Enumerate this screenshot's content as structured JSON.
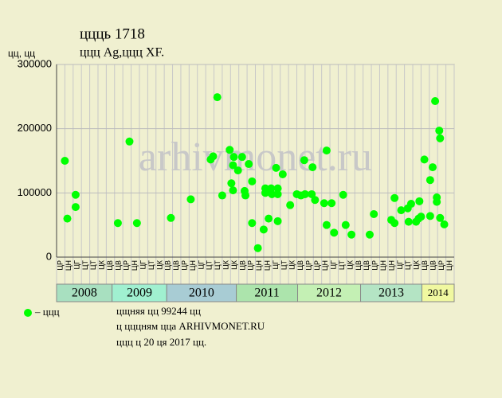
{
  "chart_data": {
    "type": "scatter",
    "title": "ццць 1718",
    "subtitle": "ццц Ag,ццц XF.",
    "y_label": "цц, цц",
    "watermark": "arhivmonet.ru",
    "color": "#00ff00",
    "legend": "– ццц",
    "notes": [
      "цщняя цц 99244 цц",
      "ц цццням цца ARHIVMONET.RU",
      "ццц ц 20 ця 2017 цц."
    ],
    "grid": true,
    "xlim": [
      0,
      48
    ],
    "ylim": [
      0,
      300000
    ],
    "yticks": [
      0,
      100000,
      200000,
      300000
    ],
    "xticks": [
      {
        "value": 0.5,
        "label": "ЦР"
      },
      {
        "value": 1.5,
        "label": "ЦН"
      },
      {
        "value": 2.5,
        "label": "ЦГ"
      },
      {
        "value": 3.5,
        "label": "ЦТ"
      },
      {
        "value": 4.5,
        "label": "ЦТ"
      },
      {
        "value": 5.5,
        "label": "ЦК"
      },
      {
        "value": 6.5,
        "label": "ЦВ"
      },
      {
        "value": 7.5,
        "label": "ЦВ"
      },
      {
        "value": 8.5,
        "label": "ЦР"
      },
      {
        "value": 9.5,
        "label": "ЦН"
      },
      {
        "value": 10.5,
        "label": "ЦГ"
      },
      {
        "value": 11.5,
        "label": "ЦТ"
      },
      {
        "value": 12.5,
        "label": "ЦК"
      },
      {
        "value": 13.5,
        "label": "ЦВ"
      },
      {
        "value": 14.5,
        "label": "ЦВ"
      },
      {
        "value": 15.5,
        "label": "ЦР"
      },
      {
        "value": 16.5,
        "label": "ЦН"
      },
      {
        "value": 17.5,
        "label": "ЦГ"
      },
      {
        "value": 18.5,
        "label": "ЦТ"
      },
      {
        "value": 19.5,
        "label": "ЦТ"
      },
      {
        "value": 20.5,
        "label": "ЦК"
      },
      {
        "value": 21.5,
        "label": "ЦК"
      },
      {
        "value": 22.5,
        "label": "ЦВ"
      },
      {
        "value": 23.5,
        "label": "ЦР"
      },
      {
        "value": 24.5,
        "label": "ЦН"
      },
      {
        "value": 25.5,
        "label": "ЦН"
      },
      {
        "value": 26.5,
        "label": "ЦГ"
      },
      {
        "value": 27.5,
        "label": "ЦТ"
      },
      {
        "value": 28.5,
        "label": "ЦК"
      },
      {
        "value": 29.5,
        "label": "ЦВ"
      },
      {
        "value": 30.5,
        "label": "ЦР"
      },
      {
        "value": 31.5,
        "label": "ЦР"
      },
      {
        "value": 32.5,
        "label": "ЦН"
      },
      {
        "value": 33.5,
        "label": "ЦГ"
      },
      {
        "value": 34.5,
        "label": "ЦТ"
      },
      {
        "value": 35.5,
        "label": "ЦК"
      },
      {
        "value": 36.5,
        "label": "ЦВ"
      },
      {
        "value": 37.5,
        "label": "ЦВ"
      },
      {
        "value": 38.5,
        "label": "ЦР"
      },
      {
        "value": 39.5,
        "label": "ЦН"
      },
      {
        "value": 40.5,
        "label": "ЦН"
      },
      {
        "value": 41.5,
        "label": "ЦГ"
      },
      {
        "value": 42.5,
        "label": "ЦТ"
      },
      {
        "value": 43.5,
        "label": "ЦК"
      },
      {
        "value": 44.5,
        "label": "ЦВ"
      },
      {
        "value": 45.5,
        "label": "ЦВ"
      },
      {
        "value": 46.5,
        "label": "ЦР"
      },
      {
        "value": 47.5,
        "label": "ЦН"
      }
    ],
    "years": [
      {
        "label": "2008",
        "start": 0,
        "end": 6.7,
        "color": "#a8e0c0"
      },
      {
        "label": "2009",
        "start": 6.7,
        "end": 13.3,
        "color": "#a0f0d0"
      },
      {
        "label": "2010",
        "start": 13.3,
        "end": 21.7,
        "color": "#a8ccd4"
      },
      {
        "label": "2011",
        "start": 21.7,
        "end": 29.1,
        "color": "#ace4ac"
      },
      {
        "label": "2012",
        "start": 29.1,
        "end": 36.7,
        "color": "#c4f0b4"
      },
      {
        "label": "2013",
        "start": 36.7,
        "end": 44.1,
        "color": "#b4e4c4"
      },
      {
        "label": "2014",
        "start": 44.1,
        "end": 48,
        "color": "#f0f8a0"
      }
    ],
    "x": [
      1.0,
      1.3,
      2.3,
      2.3,
      7.4,
      8.8,
      9.7,
      13.8,
      16.2,
      18.6,
      18.9,
      19.4,
      20.0,
      20.9,
      21.1,
      21.3,
      21.3,
      21.4,
      21.9,
      22.4,
      22.7,
      22.8,
      23.2,
      23.6,
      23.6,
      24.3,
      25.0,
      25.2,
      25.2,
      25.6,
      25.9,
      26.0,
      26.5,
      26.7,
      26.7,
      26.7,
      27.3,
      28.2,
      29.0,
      29.5,
      29.9,
      30.0,
      30.8,
      30.9,
      31.2,
      32.3,
      32.6,
      32.6,
      33.2,
      33.5,
      34.6,
      34.9,
      35.6,
      37.8,
      38.3,
      40.4,
      40.8,
      40.8,
      41.6,
      42.4,
      42.5,
      42.8,
      43.4,
      43.7,
      43.8,
      44.0,
      44.4,
      45.1,
      45.1,
      45.4,
      45.7,
      45.9,
      45.9,
      46.2,
      46.3,
      46.3,
      46.8
    ],
    "values": [
      150000,
      60000,
      97000,
      78000,
      53000,
      180000,
      53000,
      61000,
      90000,
      152000,
      157000,
      249000,
      96000,
      167000,
      115000,
      143000,
      104000,
      156000,
      135000,
      156000,
      103000,
      96000,
      145000,
      118000,
      53000,
      14000,
      43000,
      107000,
      100000,
      60000,
      107000,
      98000,
      139000,
      107000,
      98000,
      56000,
      129000,
      81000,
      98000,
      96000,
      151000,
      98000,
      98000,
      140000,
      89000,
      84000,
      166000,
      50000,
      84000,
      38000,
      97000,
      50000,
      35000,
      35000,
      67000,
      58000,
      92000,
      53000,
      73000,
      76000,
      55000,
      83000,
      55000,
      60000,
      87000,
      63000,
      152000,
      120000,
      64000,
      140000,
      243000,
      93000,
      86000,
      197000,
      185000,
      61000,
      51000
    ]
  }
}
